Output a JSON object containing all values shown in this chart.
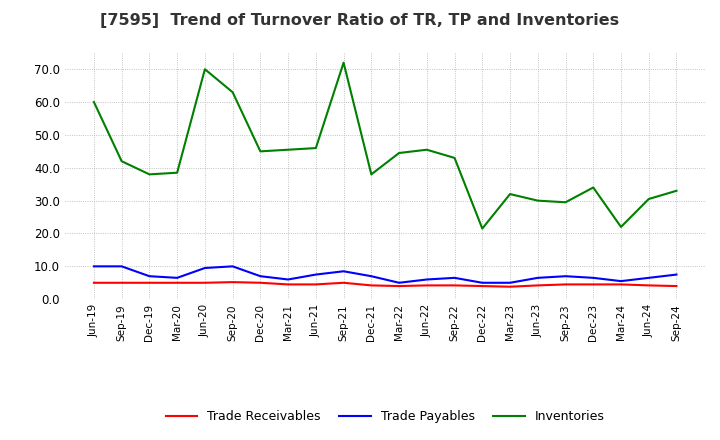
{
  "title": "[7595]  Trend of Turnover Ratio of TR, TP and Inventories",
  "x_labels": [
    "Jun-19",
    "Sep-19",
    "Dec-19",
    "Mar-20",
    "Jun-20",
    "Sep-20",
    "Dec-20",
    "Mar-21",
    "Jun-21",
    "Sep-21",
    "Dec-21",
    "Mar-22",
    "Jun-22",
    "Sep-22",
    "Dec-22",
    "Mar-23",
    "Jun-23",
    "Sep-23",
    "Dec-23",
    "Mar-24",
    "Jun-24",
    "Sep-24"
  ],
  "trade_receivables": [
    5.0,
    5.0,
    5.0,
    5.0,
    5.0,
    5.2,
    5.0,
    4.5,
    4.5,
    5.0,
    4.2,
    4.0,
    4.2,
    4.2,
    4.0,
    3.8,
    4.2,
    4.5,
    4.5,
    4.5,
    4.2,
    4.0
  ],
  "trade_payables": [
    10.0,
    10.0,
    7.0,
    6.5,
    9.5,
    10.0,
    7.0,
    6.0,
    7.5,
    8.5,
    7.0,
    5.0,
    6.0,
    6.5,
    5.0,
    5.0,
    6.5,
    7.0,
    6.5,
    5.5,
    6.5,
    7.5
  ],
  "inventories": [
    60.0,
    42.0,
    38.0,
    38.5,
    70.0,
    63.0,
    45.0,
    45.5,
    46.0,
    72.0,
    38.0,
    44.5,
    45.5,
    43.0,
    21.5,
    32.0,
    30.0,
    29.5,
    34.0,
    22.0,
    30.5,
    33.0
  ],
  "ylim": [
    0.0,
    75.0
  ],
  "yticks": [
    0.0,
    10.0,
    20.0,
    30.0,
    40.0,
    50.0,
    60.0,
    70.0
  ],
  "tr_color": "#ff0000",
  "tp_color": "#0000ff",
  "inv_color": "#008000",
  "background_color": "#ffffff",
  "grid_color": "#b0b0b0",
  "title_fontsize": 11.5,
  "legend_labels": [
    "Trade Receivables",
    "Trade Payables",
    "Inventories"
  ]
}
